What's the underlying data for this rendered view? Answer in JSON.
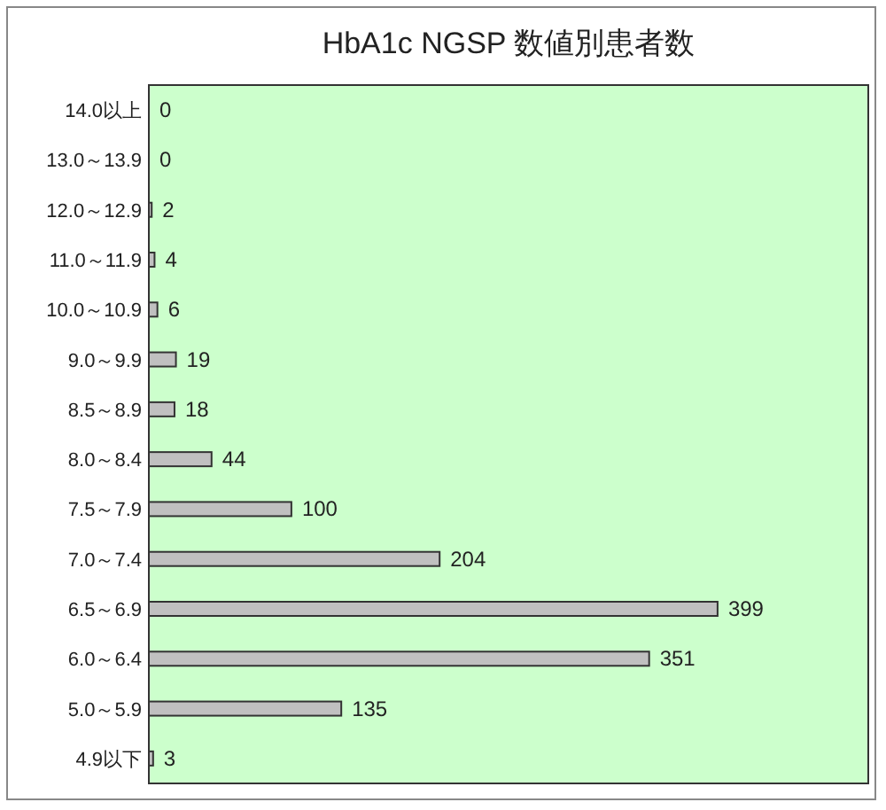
{
  "chart_data": {
    "type": "bar",
    "orientation": "horizontal",
    "title": "HbA1c NGSP 数値別患者数",
    "categories": [
      "14.0以上",
      "13.0～13.9",
      "12.0～12.9",
      "11.0～11.9",
      "10.0～10.9",
      "9.0～9.9",
      "8.5～8.9",
      "8.0～8.4",
      "7.5～7.9",
      "7.0～7.4",
      "6.5～6.9",
      "6.0～6.4",
      "5.0～5.9",
      "4.9以下"
    ],
    "values": [
      0,
      0,
      2,
      4,
      6,
      19,
      18,
      44,
      100,
      204,
      399,
      351,
      135,
      3
    ],
    "color": "#c0c0c0",
    "data_labels": true
  }
}
